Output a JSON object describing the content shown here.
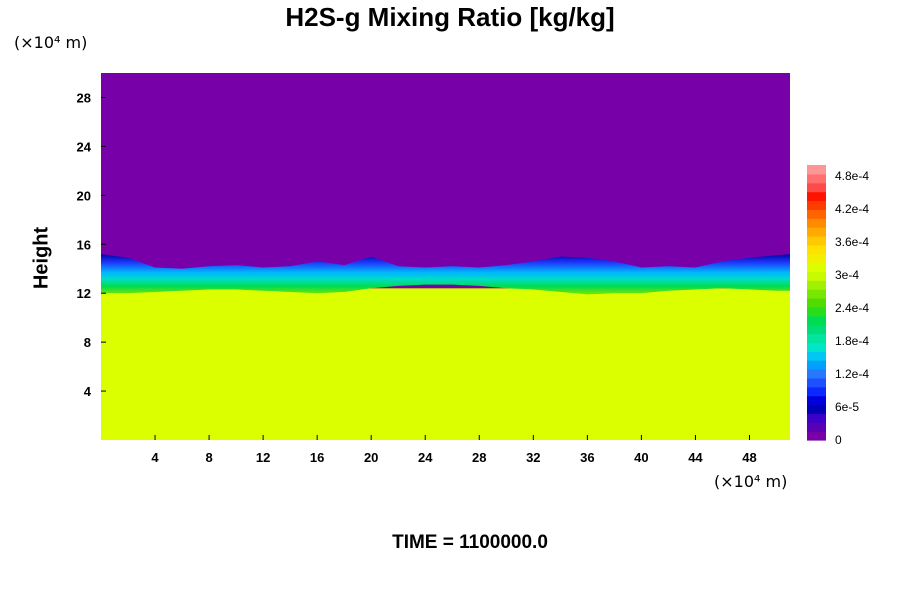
{
  "chart_data": {
    "type": "heatmap",
    "title": "H2S-g Mixing Ratio [kg/kg]",
    "ylabel": "Height",
    "x_unit_label": "(×10⁴ m)",
    "y_unit_label": "(×10⁴ m)",
    "xlim": [
      0,
      51
    ],
    "ylim": [
      0,
      30
    ],
    "x_ticks": [
      "4",
      "8",
      "12",
      "16",
      "20",
      "24",
      "28",
      "32",
      "36",
      "40",
      "44",
      "48"
    ],
    "y_ticks": [
      "4",
      "8",
      "12",
      "16",
      "20",
      "24",
      "28"
    ],
    "colorbar": {
      "range": [
        0,
        0.0005
      ],
      "labels": [
        "0",
        "6e-5",
        "1.2e-4",
        "1.8e-4",
        "2.4e-4",
        "3e-4",
        "3.6e-4",
        "4.2e-4",
        "4.8e-4"
      ]
    },
    "regions": [
      {
        "name": "upper",
        "y_range": [
          14.5,
          30
        ],
        "value": 0
      },
      {
        "name": "transition",
        "y_range": [
          11.9,
          15.2
        ],
        "value": "0 to 3.4e-4"
      },
      {
        "name": "lower",
        "y_range": [
          0,
          12
        ],
        "value": 0.00034
      }
    ],
    "interface_height_profile": {
      "x": [
        0,
        2,
        4,
        6,
        8,
        10,
        12,
        14,
        16,
        18,
        20,
        22,
        24,
        26,
        28,
        30,
        32,
        34,
        36,
        38,
        40,
        42,
        44,
        46,
        48,
        50,
        51
      ],
      "top": [
        15.2,
        14.9,
        14.1,
        14.0,
        14.2,
        14.3,
        14.1,
        14.2,
        14.6,
        14.3,
        15.0,
        14.2,
        14.1,
        14.2,
        14.1,
        14.3,
        14.6,
        15.0,
        14.9,
        14.6,
        14.1,
        14.2,
        14.1,
        14.6,
        14.9,
        15.1,
        15.2
      ],
      "bottom": [
        12.0,
        12.0,
        12.1,
        12.2,
        12.3,
        12.3,
        12.2,
        12.1,
        12.0,
        12.1,
        12.4,
        12.6,
        12.7,
        12.7,
        12.6,
        12.4,
        12.3,
        12.1,
        11.9,
        12.0,
        12.0,
        12.2,
        12.3,
        12.4,
        12.3,
        12.2,
        12.2
      ]
    },
    "grid": false,
    "legend": "colorbar-right"
  },
  "footer": {
    "time": "TIME = 1100000.0"
  },
  "colors": {
    "low": "#7800a8",
    "band": [
      "#0000a8",
      "#1e3cff",
      "#00b4ff",
      "#00dcc8",
      "#00dc50",
      "#78e600"
    ],
    "high": "#dcff00",
    "colorbar": [
      "#7800a8",
      "#5a00b4",
      "#3c00c8",
      "#0000b4",
      "#0000dc",
      "#0a28ff",
      "#1e50ff",
      "#2878ff",
      "#00a0ff",
      "#00c8f0",
      "#00e6c8",
      "#00e6a0",
      "#00dc78",
      "#00dc50",
      "#28dc1e",
      "#50dc00",
      "#78e600",
      "#a0f000",
      "#c8fa00",
      "#dcff00",
      "#f0f000",
      "#ffe100",
      "#ffc800",
      "#ffaa00",
      "#ff8c00",
      "#ff6400",
      "#ff3c00",
      "#ff1400",
      "#ff4a4a",
      "#ff7070",
      "#ff9696"
    ]
  }
}
